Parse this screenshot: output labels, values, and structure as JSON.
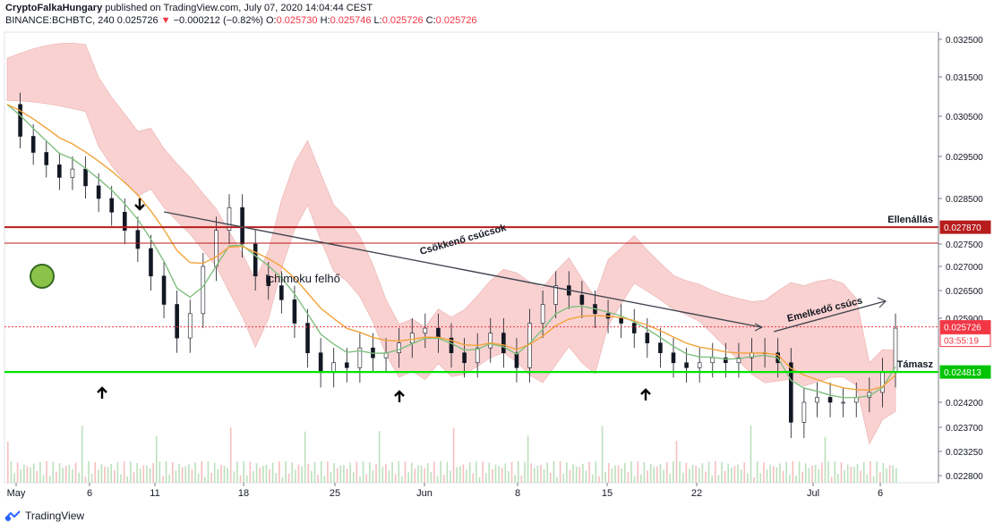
{
  "header": {
    "author": "CryptoFalkaHungary",
    "published": "published on TradingView.com, July 07, 2020 14:04:44 CEST",
    "symbol": "BINANCE:BCHBTC, 240",
    "last": "0.025726",
    "change": "−0.000212 (−0.82%)",
    "o_label": "O:",
    "o": "0.025730",
    "h_label": "H:",
    "h": "0.025746",
    "l_label": "L:",
    "l": "0.025726",
    "c_label": "C:",
    "c": "0.025726"
  },
  "footer": {
    "brand": "TradingView"
  },
  "colors": {
    "resistance": "#b71c1c",
    "support": "#00e600",
    "cloud": "#f8c9c9",
    "cloud_green": "#cfe8cf",
    "ema": "#f2a33a",
    "kijun": "#7fbf7f"
  },
  "chart_data": {
    "type": "candlestick",
    "yaxis": {
      "ticks": [
        "0.032500",
        "0.031500",
        "0.030500",
        "0.029500",
        "0.028500",
        "0.027500",
        "0.027000",
        "0.026500",
        "0.025900",
        "0.024200",
        "0.023700",
        "0.023250",
        "0.022800"
      ],
      "range": [
        0.0227,
        0.0327
      ]
    },
    "xaxis": {
      "ticks": [
        "May",
        "6",
        "11",
        "18",
        "25",
        "Jun",
        "8",
        "15",
        "22",
        "Jul",
        "6"
      ]
    },
    "price_labels": [
      {
        "value": 0.02787,
        "text": "0.027870",
        "color": "#b71c1c"
      },
      {
        "value": 0.025726,
        "text": "0.025726",
        "color": "#f23645"
      },
      {
        "value": 0.025726,
        "text": "03:55:19",
        "color": "#f23645"
      },
      {
        "value": 0.024813,
        "text": "0.024813",
        "color": "#00c400"
      }
    ],
    "levels": [
      {
        "name": "Ellenállás",
        "value": 0.02787,
        "color": "#b71c1c"
      },
      {
        "name": "Támasz",
        "value": 0.024813,
        "color": "#00e600"
      }
    ],
    "annotations": [
      {
        "text": "Ichimoku felhő"
      },
      {
        "text": "Csökkenő csúcsok"
      },
      {
        "text": "Emelkedő csúcs"
      }
    ],
    "close_path": [
      0.0308,
      0.03,
      0.0296,
      0.0293,
      0.029,
      0.0292,
      0.0288,
      0.0285,
      0.0282,
      0.0278,
      0.0274,
      0.0268,
      0.0262,
      0.0255,
      0.026,
      0.027,
      0.0278,
      0.0283,
      0.0275,
      0.0268,
      0.0266,
      0.0263,
      0.0258,
      0.0252,
      0.0248,
      0.025,
      0.0249,
      0.0253,
      0.0251,
      0.0252,
      0.0254,
      0.0256,
      0.0257,
      0.0255,
      0.0252,
      0.025,
      0.0253,
      0.0256,
      0.0252,
      0.0249,
      0.0258,
      0.0262,
      0.0266,
      0.0264,
      0.0262,
      0.026,
      0.0259,
      0.0258,
      0.0256,
      0.0254,
      0.0252,
      0.025,
      0.0249,
      0.025,
      0.0251,
      0.025,
      0.0251,
      0.0252,
      0.0252,
      0.025,
      0.0238,
      0.0242,
      0.0243,
      0.0242,
      0.0242,
      0.0243,
      0.0244,
      0.0248,
      0.0257
    ]
  }
}
